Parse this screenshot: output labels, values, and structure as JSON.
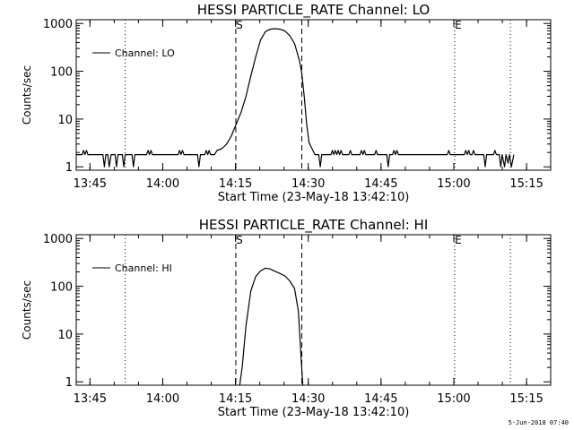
{
  "footer_date": "5-Jun-2018 07:40",
  "line_color": "#000000",
  "background_color": "#ffffff",
  "chart_data": [
    {
      "type": "line",
      "title": "HESSI PARTICLE_RATE Channel: LO",
      "xlabel": "Start Time (23-May-18 13:42:10)",
      "ylabel": "Counts/sec",
      "yscale": "log",
      "ylim": [
        0.85,
        1200
      ],
      "xlim_minutes": [
        0,
        97.8
      ],
      "xticks": [
        {
          "label": "13:45",
          "t": 2.83
        },
        {
          "label": "14:00",
          "t": 17.83
        },
        {
          "label": "14:15",
          "t": 32.83
        },
        {
          "label": "14:30",
          "t": 47.83
        },
        {
          "label": "14:45",
          "t": 62.83
        },
        {
          "label": "15:00",
          "t": 77.83
        },
        {
          "label": "15:15",
          "t": 92.83
        }
      ],
      "yticks": [
        {
          "label": "1",
          "v": 1
        },
        {
          "label": "10",
          "v": 10
        },
        {
          "label": "100",
          "v": 100
        },
        {
          "label": "1000",
          "v": 1000
        }
      ],
      "legend": {
        "label": "Channel: LO",
        "position": "top-left"
      },
      "markers": [
        {
          "t": 10.1,
          "style": "dotted",
          "label": ""
        },
        {
          "t": 32.9,
          "style": "dashed",
          "label": "S"
        },
        {
          "t": 46.5,
          "style": "dashed",
          "label": ""
        },
        {
          "t": 78.0,
          "style": "dotted",
          "label": "E"
        },
        {
          "t": 89.5,
          "style": "dotted",
          "label": ""
        }
      ],
      "series": [
        {
          "name": "Channel: LO",
          "points": [
            [
              0,
              1.8
            ],
            [
              1.2,
              1.8
            ],
            [
              1.5,
              2.2
            ],
            [
              1.8,
              1.8
            ],
            [
              2.1,
              2.2
            ],
            [
              2.4,
              1.8
            ],
            [
              5.5,
              1.8
            ],
            [
              5.8,
              1.0
            ],
            [
              6.1,
              1.8
            ],
            [
              6.5,
              1.8
            ],
            [
              6.8,
              1.0
            ],
            [
              7.2,
              1.8
            ],
            [
              8.0,
              1.8
            ],
            [
              8.3,
              1.0
            ],
            [
              8.6,
              1.8
            ],
            [
              9.5,
              1.8
            ],
            [
              9.8,
              1.0
            ],
            [
              10.1,
              1.8
            ],
            [
              11.5,
              1.8
            ],
            [
              11.8,
              1.0
            ],
            [
              12.1,
              1.8
            ],
            [
              14.5,
              1.8
            ],
            [
              14.8,
              2.2
            ],
            [
              15.1,
              1.8
            ],
            [
              15.4,
              2.2
            ],
            [
              15.7,
              1.8
            ],
            [
              21,
              1.8
            ],
            [
              21.3,
              2.2
            ],
            [
              21.6,
              1.8
            ],
            [
              21.9,
              2.2
            ],
            [
              22.2,
              1.8
            ],
            [
              25,
              1.8
            ],
            [
              25.3,
              1.0
            ],
            [
              25.6,
              1.8
            ],
            [
              26.5,
              1.8
            ],
            [
              26.8,
              2.2
            ],
            [
              27.1,
              1.8
            ],
            [
              27.4,
              2.2
            ],
            [
              27.7,
              1.8
            ],
            [
              28.5,
              1.8
            ],
            [
              29,
              2.2
            ],
            [
              30,
              2.4
            ],
            [
              31,
              3.0
            ],
            [
              32,
              4.5
            ],
            [
              33,
              8
            ],
            [
              34,
              14
            ],
            [
              35,
              30
            ],
            [
              36,
              80
            ],
            [
              37,
              200
            ],
            [
              38,
              450
            ],
            [
              39,
              680
            ],
            [
              40,
              760
            ],
            [
              41,
              780
            ],
            [
              42,
              760
            ],
            [
              43,
              700
            ],
            [
              44,
              560
            ],
            [
              45,
              380
            ],
            [
              46,
              170
            ],
            [
              46.5,
              90
            ],
            [
              47,
              30
            ],
            [
              47.5,
              8
            ],
            [
              48,
              3.2
            ],
            [
              48.6,
              2.4
            ],
            [
              49.2,
              1.8
            ],
            [
              50,
              1.8
            ],
            [
              50.3,
              1.0
            ],
            [
              50.6,
              1.8
            ],
            [
              52.5,
              1.8
            ],
            [
              52.8,
              2.2
            ],
            [
              53.1,
              1.8
            ],
            [
              53.4,
              2.2
            ],
            [
              53.7,
              1.8
            ],
            [
              54,
              2.2
            ],
            [
              54.3,
              1.8
            ],
            [
              54.6,
              2.2
            ],
            [
              54.9,
              1.8
            ],
            [
              56.2,
              1.8
            ],
            [
              56.5,
              2.2
            ],
            [
              56.8,
              1.8
            ],
            [
              58.5,
              1.8
            ],
            [
              58.8,
              2.2
            ],
            [
              59.1,
              1.8
            ],
            [
              59.4,
              2.2
            ],
            [
              59.7,
              1.8
            ],
            [
              61.5,
              1.8
            ],
            [
              61.8,
              2.2
            ],
            [
              62.1,
              1.8
            ],
            [
              64,
              1.8
            ],
            [
              64.3,
              1.0
            ],
            [
              64.6,
              1.8
            ],
            [
              65.2,
              1.8
            ],
            [
              65.5,
              2.2
            ],
            [
              65.8,
              1.8
            ],
            [
              66.1,
              2.2
            ],
            [
              66.4,
              1.8
            ],
            [
              76.5,
              1.8
            ],
            [
              76.8,
              2.2
            ],
            [
              77.1,
              1.8
            ],
            [
              80,
              1.8
            ],
            [
              80.3,
              2.2
            ],
            [
              80.6,
              1.8
            ],
            [
              80.9,
              2.2
            ],
            [
              81.2,
              1.8
            ],
            [
              81.6,
              1.8
            ],
            [
              81.9,
              2.2
            ],
            [
              82.2,
              1.8
            ],
            [
              84,
              1.8
            ],
            [
              84.3,
              1.0
            ],
            [
              84.6,
              1.8
            ],
            [
              86,
              1.8
            ],
            [
              86.3,
              2.2
            ],
            [
              86.6,
              1.8
            ],
            [
              87.2,
              1.8
            ],
            [
              87.5,
              1.0
            ],
            [
              87.8,
              1.8
            ],
            [
              88.3,
              1.0
            ],
            [
              88.6,
              1.8
            ],
            [
              89,
              1.2
            ],
            [
              89.3,
              1.8
            ],
            [
              89.7,
              1.0
            ],
            [
              90.2,
              1.8
            ]
          ]
        }
      ]
    },
    {
      "type": "line",
      "title": "HESSI PARTICLE_RATE Channel: HI",
      "xlabel": "Start Time (23-May-18 13:42:10)",
      "ylabel": "Counts/sec",
      "yscale": "log",
      "ylim": [
        0.85,
        1200
      ],
      "xlim_minutes": [
        0,
        97.8
      ],
      "xticks": [
        {
          "label": "13:45",
          "t": 2.83
        },
        {
          "label": "14:00",
          "t": 17.83
        },
        {
          "label": "14:15",
          "t": 32.83
        },
        {
          "label": "14:30",
          "t": 47.83
        },
        {
          "label": "14:45",
          "t": 62.83
        },
        {
          "label": "15:00",
          "t": 77.83
        },
        {
          "label": "15:15",
          "t": 92.83
        }
      ],
      "yticks": [
        {
          "label": "1",
          "v": 1
        },
        {
          "label": "10",
          "v": 10
        },
        {
          "label": "100",
          "v": 100
        },
        {
          "label": "1000",
          "v": 1000
        }
      ],
      "legend": {
        "label": "Channel: HI",
        "position": "top-left"
      },
      "markers": [
        {
          "t": 10.1,
          "style": "dotted",
          "label": ""
        },
        {
          "t": 32.9,
          "style": "dashed",
          "label": "S"
        },
        {
          "t": 46.5,
          "style": "dashed",
          "label": ""
        },
        {
          "t": 78.0,
          "style": "dotted",
          "label": "E"
        },
        {
          "t": 89.5,
          "style": "dotted",
          "label": ""
        }
      ],
      "series": [
        {
          "name": "Channel: HI",
          "points": [
            [
              33.7,
              0.85
            ],
            [
              34.2,
              2
            ],
            [
              35,
              15
            ],
            [
              36,
              80
            ],
            [
              37,
              160
            ],
            [
              38,
              210
            ],
            [
              39,
              240
            ],
            [
              40,
              230
            ],
            [
              41,
              205
            ],
            [
              42,
              185
            ],
            [
              43,
              165
            ],
            [
              44,
              130
            ],
            [
              45,
              90
            ],
            [
              45.8,
              30
            ],
            [
              46.3,
              4
            ],
            [
              46.7,
              0.85
            ]
          ]
        }
      ]
    }
  ]
}
